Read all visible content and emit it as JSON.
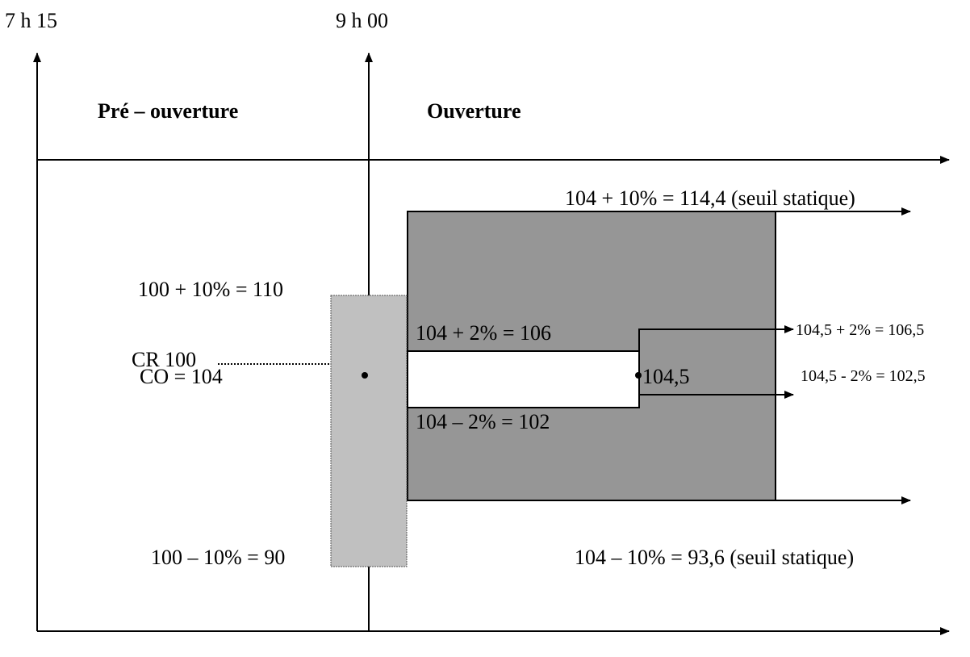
{
  "time_labels": {
    "start": "7 h 15",
    "open": "9 h 00"
  },
  "phases": {
    "pre_opening": "Pré – ouverture",
    "opening": "Ouverture"
  },
  "reference_labels": {
    "upper_ref": "100 + 10% = 110",
    "co": "CO = 104",
    "cr": "CR 100",
    "lower_ref": "100 – 10% = 90"
  },
  "static_thresholds": {
    "upper": "104 + 10% = 114,4 (seuil statique)",
    "lower": "104 – 10% = 93,6 (seuil statique)"
  },
  "dynamic_thresholds": {
    "upper_initial": "104 + 2% = 106",
    "lower_initial": "104 – 2% = 102",
    "trade_price": "104,5",
    "upper_new": "104,5 + 2% = 106,5",
    "lower_new": "104,5 - 2% = 102,5"
  },
  "colors": {
    "axis": "#000000",
    "pre_opening_band": "#c0c0c0",
    "static_band": "#969696",
    "dynamic_band": "#ffffff",
    "text": "#000000"
  }
}
